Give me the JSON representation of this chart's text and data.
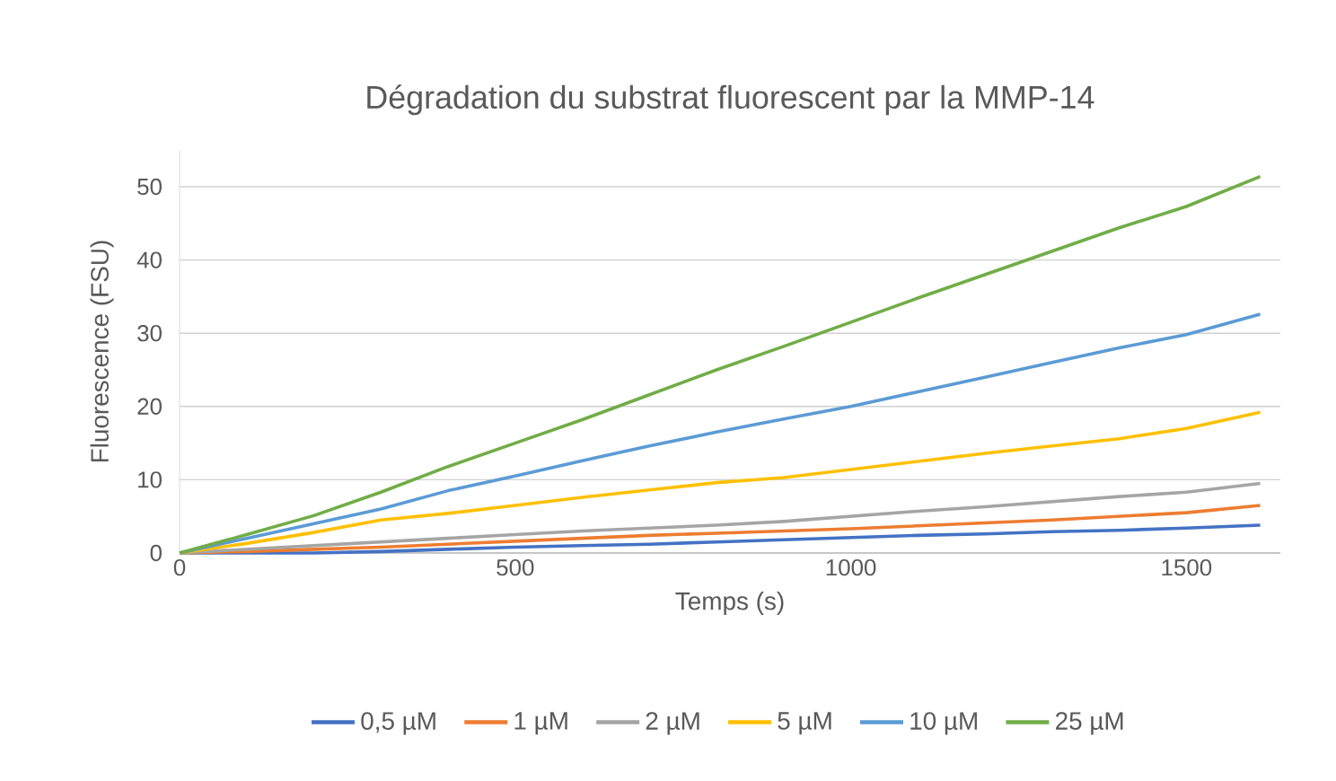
{
  "chart_data": {
    "type": "line",
    "title": "Dégradation du substrat fluorescent par la MMP-14",
    "xlabel": "Temps (s)",
    "ylabel": "Fluorescence (FSU)",
    "x": [
      0,
      100,
      200,
      300,
      400,
      500,
      600,
      700,
      800,
      900,
      1000,
      1100,
      1200,
      1300,
      1400,
      1500,
      1610
    ],
    "series": [
      {
        "name": "0,5 µM",
        "color": "#4472c4",
        "values": [
          0,
          0,
          0,
          0.2,
          0.5,
          0.8,
          1.0,
          1.2,
          1.5,
          1.8,
          2.1,
          2.4,
          2.6,
          2.9,
          3.1,
          3.4,
          3.8
        ]
      },
      {
        "name": "1 µM",
        "color": "#ed7d31",
        "values": [
          0,
          0.2,
          0.5,
          0.8,
          1.2,
          1.6,
          2.0,
          2.4,
          2.7,
          3.0,
          3.3,
          3.7,
          4.1,
          4.5,
          5.0,
          5.5,
          6.5
        ]
      },
      {
        "name": "2 µM",
        "color": "#a5a5a5",
        "values": [
          0,
          0.5,
          1.0,
          1.5,
          2.0,
          2.5,
          3.0,
          3.4,
          3.8,
          4.3,
          5.0,
          5.7,
          6.3,
          7.0,
          7.7,
          8.3,
          9.5
        ]
      },
      {
        "name": "5 µM",
        "color": "#ffc000",
        "values": [
          0,
          1.3,
          2.8,
          4.5,
          5.4,
          6.5,
          7.6,
          8.6,
          9.6,
          10.3,
          11.4,
          12.5,
          13.6,
          14.6,
          15.6,
          17.0,
          19.2
        ]
      },
      {
        "name": "10 µM",
        "color": "#5b9bd5",
        "values": [
          0,
          2.0,
          4.0,
          6.0,
          8.5,
          10.5,
          12.6,
          14.6,
          16.5,
          18.3,
          20.0,
          22.0,
          24.0,
          26.0,
          28.0,
          29.8,
          32.6
        ]
      },
      {
        "name": "25 µM",
        "color": "#70ad47",
        "values": [
          0,
          2.5,
          5.1,
          8.3,
          11.8,
          15.0,
          18.2,
          21.6,
          25.0,
          28.2,
          31.5,
          34.8,
          38.0,
          41.2,
          44.4,
          47.3,
          51.4
        ]
      }
    ],
    "xlim": [
      0,
      1640
    ],
    "ylim": [
      0,
      55
    ],
    "xticks": [
      0,
      500,
      1000,
      1500
    ],
    "yticks": [
      0,
      10,
      20,
      30,
      40,
      50
    ],
    "grid": "y",
    "legend": "bottom",
    "marker": "none",
    "line_style": "solid"
  }
}
